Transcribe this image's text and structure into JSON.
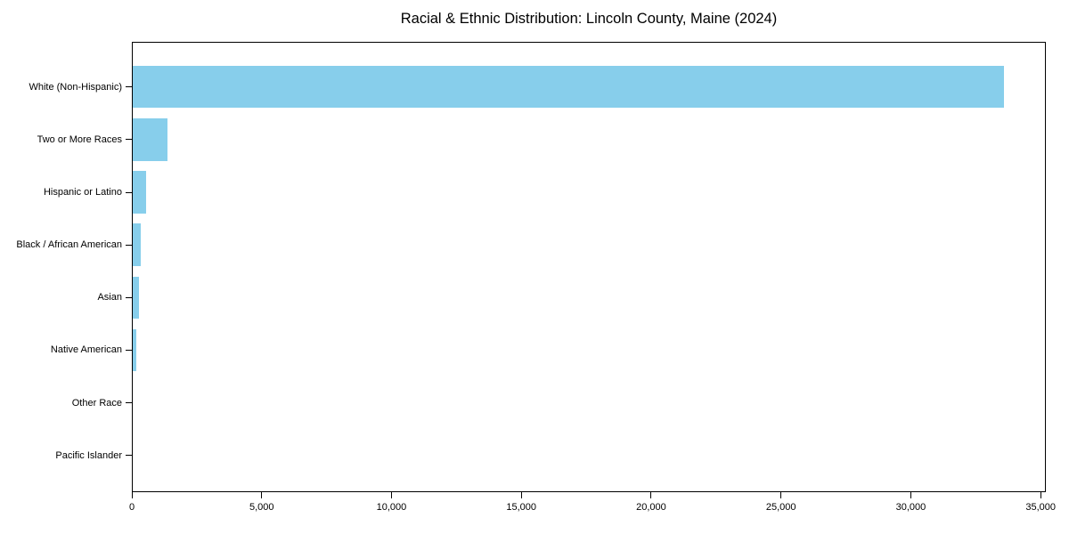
{
  "chart_data": {
    "type": "bar",
    "orientation": "horizontal",
    "title": "Racial & Ethnic Distribution: Lincoln County, Maine (2024)",
    "categories": [
      "White (Non-Hispanic)",
      "Two or More Races",
      "Hispanic or Latino",
      "Black / African American",
      "Asian",
      "Native American",
      "Other Race",
      "Pacific Islander"
    ],
    "values": [
      33560,
      1330,
      520,
      310,
      250,
      130,
      0,
      0
    ],
    "xlabel": "",
    "ylabel": "",
    "xlim": [
      0,
      35200
    ],
    "x_ticks": [
      0,
      5000,
      10000,
      15000,
      20000,
      25000,
      30000,
      35000
    ],
    "x_tick_labels": [
      "0",
      "5,000",
      "10,000",
      "15,000",
      "20,000",
      "25,000",
      "30,000",
      "35,000"
    ],
    "bar_color": "#87CEEB",
    "axis_color": "#000000",
    "text_color": "#000000",
    "background_color": "#ffffff",
    "grid": false,
    "legend": null
  }
}
